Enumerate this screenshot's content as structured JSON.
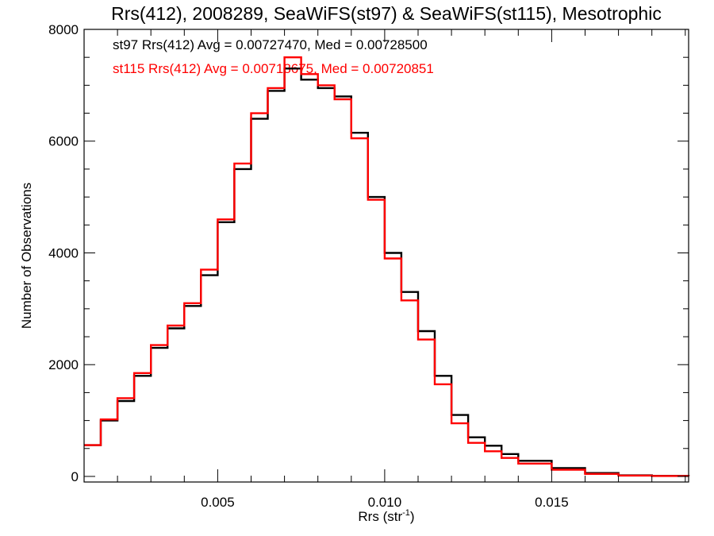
{
  "chart_data": {
    "type": "line",
    "title": "Rrs(412), 2008289, SeaWiFS(st97) & SeaWiFS(st115), Mesotrophic",
    "xlabel_main": "Rrs (str",
    "xlabel_sup": "-1",
    "xlabel_close": ")",
    "ylabel": "Number of Observations",
    "xlim": [
      0.001,
      0.0191
    ],
    "ylim": [
      -100,
      8000
    ],
    "x_ticks": [
      0.005,
      0.01,
      0.015
    ],
    "x_tick_labels": [
      "0.005",
      "0.010",
      "0.015"
    ],
    "y_ticks": [
      0,
      2000,
      4000,
      6000,
      8000
    ],
    "y_tick_labels": [
      "0",
      "2000",
      "4000",
      "6000",
      "8000"
    ],
    "grid": false,
    "step_style": true,
    "legend": [
      {
        "text": "st97 Rrs(412) Avg = 0.00727470, Med = 0.00728500",
        "color": "#000000"
      },
      {
        "text": "st115 Rrs(412) Avg = 0.00718675, Med = 0.00720851",
        "color": "#ff0000"
      }
    ],
    "series": [
      {
        "color": "#000000",
        "x": [
          0.001,
          0.0015,
          0.002,
          0.0025,
          0.003,
          0.0035,
          0.004,
          0.0045,
          0.005,
          0.0055,
          0.006,
          0.0065,
          0.007,
          0.0075,
          0.008,
          0.0085,
          0.009,
          0.0095,
          0.01,
          0.0105,
          0.011,
          0.0115,
          0.012,
          0.0125,
          0.013,
          0.0135,
          0.014,
          0.015,
          0.016,
          0.017,
          0.018,
          0.0191
        ],
        "y": [
          560,
          1000,
          1350,
          1800,
          2300,
          2650,
          3050,
          3600,
          4550,
          5500,
          6400,
          6900,
          7300,
          7100,
          6950,
          6800,
          6150,
          5000,
          4000,
          3300,
          2600,
          1800,
          1100,
          700,
          550,
          400,
          280,
          150,
          60,
          20,
          10,
          5
        ]
      },
      {
        "color": "#ff0000",
        "x": [
          0.001,
          0.0015,
          0.002,
          0.0025,
          0.003,
          0.0035,
          0.004,
          0.0045,
          0.005,
          0.0055,
          0.006,
          0.0065,
          0.007,
          0.0075,
          0.008,
          0.0085,
          0.009,
          0.0095,
          0.01,
          0.0105,
          0.011,
          0.0115,
          0.012,
          0.0125,
          0.013,
          0.0135,
          0.014,
          0.015,
          0.016,
          0.017,
          0.018,
          0.0191
        ],
        "y": [
          560,
          1020,
          1400,
          1850,
          2350,
          2700,
          3100,
          3700,
          4600,
          5600,
          6500,
          6950,
          7500,
          7200,
          7000,
          6750,
          6050,
          4950,
          3900,
          3150,
          2450,
          1650,
          950,
          600,
          450,
          330,
          230,
          120,
          45,
          15,
          8,
          3
        ]
      }
    ]
  }
}
